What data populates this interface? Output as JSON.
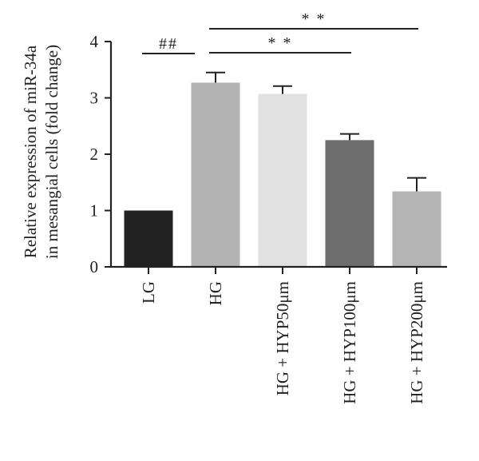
{
  "chart_data": {
    "type": "bar",
    "title": "",
    "xlabel": "",
    "ylabel_line1": "Relative expression of miR-34a",
    "ylabel_line2": "in mesangial cells (fold change)",
    "ylim": [
      0,
      4
    ],
    "yticks": [
      "0",
      "1",
      "2",
      "3",
      "4"
    ],
    "grid": false,
    "legend": "none",
    "categories": [
      "LG",
      "HG",
      "HG + HYP50μm",
      "HG + HYP100μm",
      "HG + HYP200μm"
    ],
    "values": [
      1.0,
      3.27,
      3.07,
      2.25,
      1.34
    ],
    "errors": [
      0.0,
      0.18,
      0.14,
      0.11,
      0.24
    ],
    "colors": [
      "#222222",
      "#b3b3b3",
      "#e1e1e1",
      "#6e6e6e",
      "#b5b5b5"
    ],
    "annotations": [
      {
        "label": "##",
        "from": 0,
        "to": 1
      },
      {
        "label": "* *",
        "from": 1,
        "to": 3
      },
      {
        "label": "* *",
        "from": 1,
        "to": 4
      }
    ]
  }
}
